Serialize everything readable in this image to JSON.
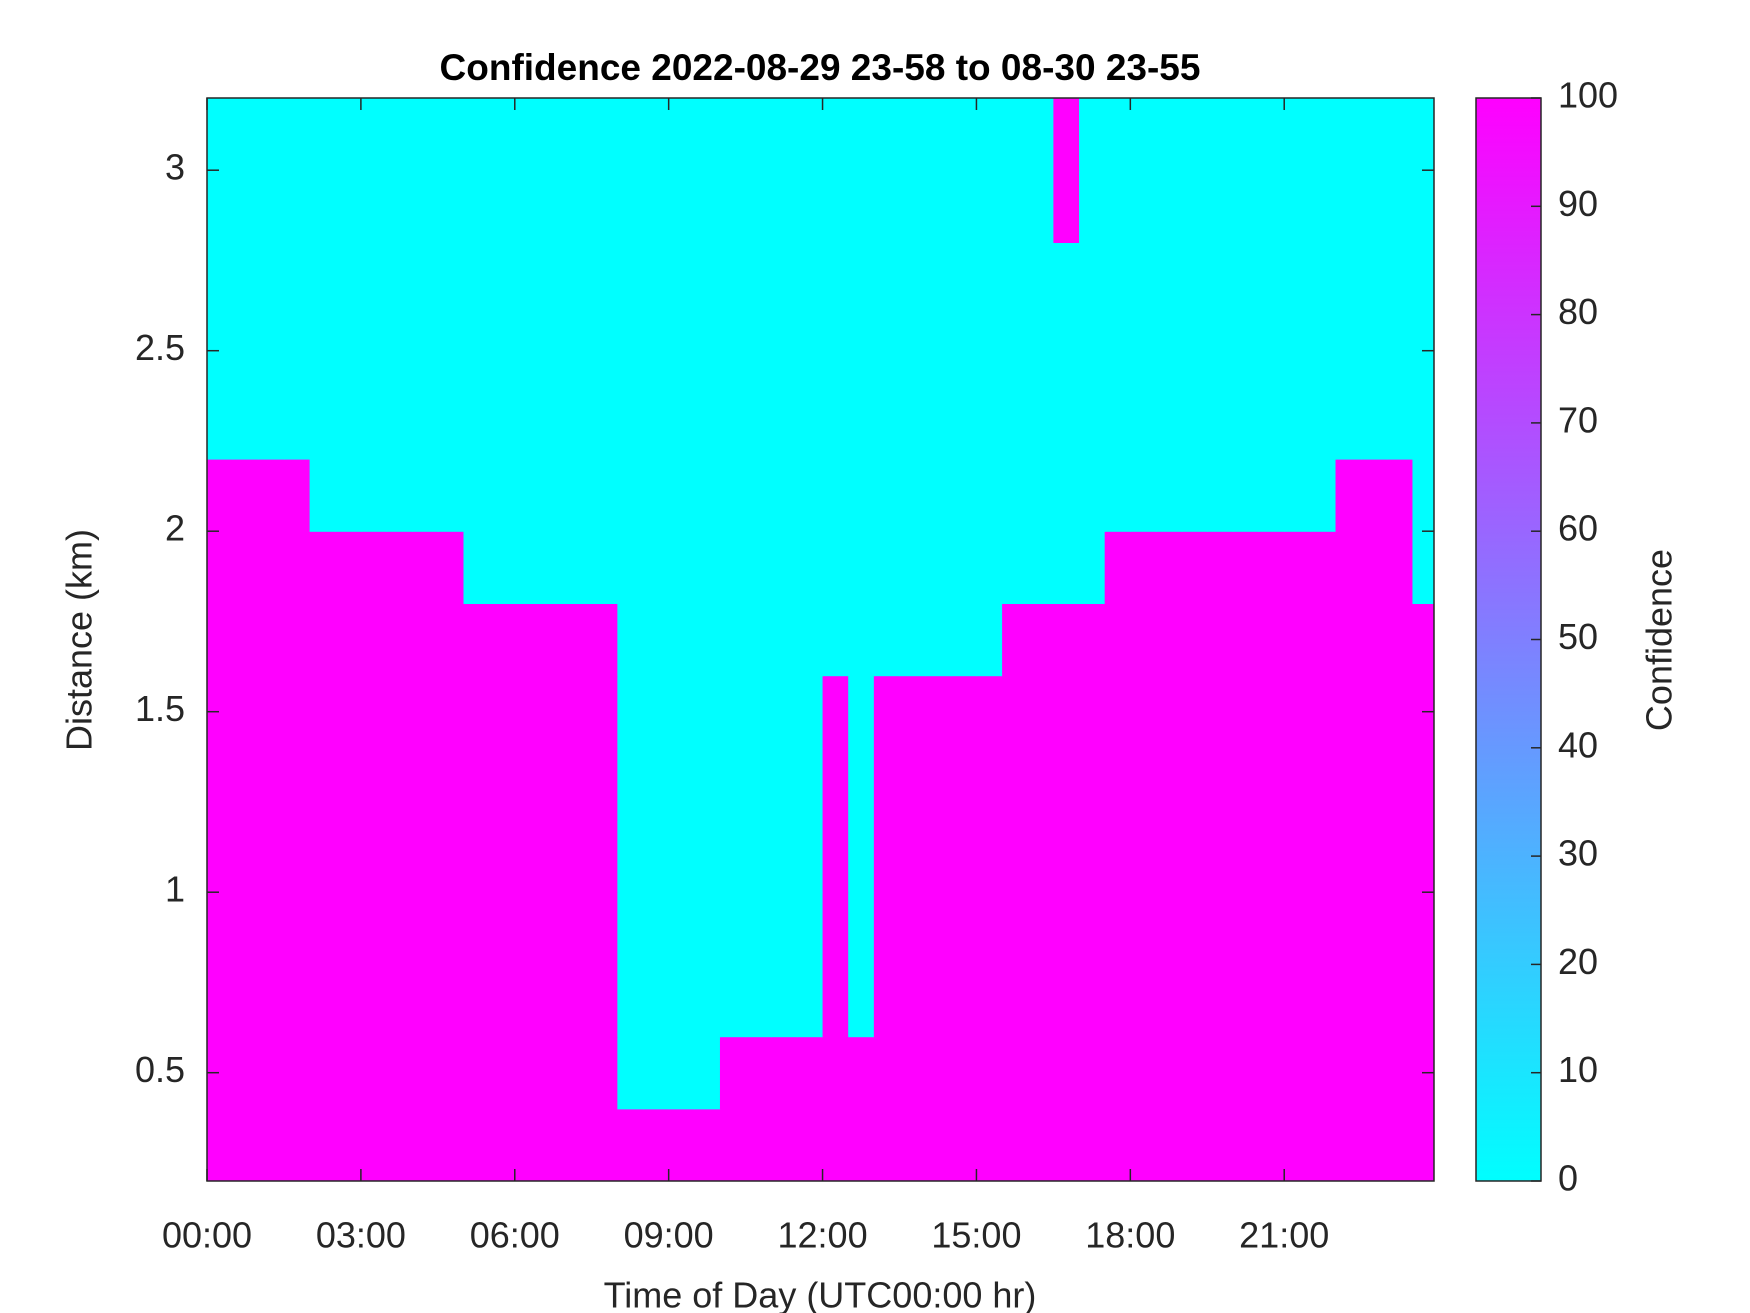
{
  "chart_data": {
    "type": "heatmap",
    "title": "Confidence 2022-08-29 23-58 to 08-30 23-55",
    "x_label": "Time of Day (UTC00:00 hr)",
    "y_label": "Distance (km)",
    "colorbar_label": "Confidence",
    "colors": [
      "#00ffff",
      "#ff00ff"
    ],
    "xlim": [
      0,
      23.92
    ],
    "xticks": [
      {
        "value": 0,
        "label": "00:00"
      },
      {
        "value": 3,
        "label": "03:00"
      },
      {
        "value": 6,
        "label": "06:00"
      },
      {
        "value": 9,
        "label": "09:00"
      },
      {
        "value": 12,
        "label": "12:00"
      },
      {
        "value": 15,
        "label": "15:00"
      },
      {
        "value": 18,
        "label": "18:00"
      },
      {
        "value": 21,
        "label": "21:00"
      }
    ],
    "ylim": [
      0.2,
      3.2
    ],
    "yticks": [
      0.5,
      1,
      1.5,
      2,
      2.5,
      3
    ],
    "clim": [
      0,
      100
    ],
    "cticks": [
      0,
      10,
      20,
      30,
      40,
      50,
      60,
      70,
      80,
      90,
      100
    ],
    "x_edges": [
      0,
      0.5,
      1,
      1.5,
      2,
      2.5,
      3,
      3.5,
      4,
      4.5,
      5,
      5.5,
      6,
      6.5,
      7,
      7.5,
      8,
      8.5,
      9,
      9.5,
      10,
      10.5,
      11,
      11.5,
      12,
      12.5,
      13,
      13.5,
      14,
      14.5,
      15,
      15.5,
      16,
      16.5,
      17,
      17.5,
      18,
      18.5,
      19,
      19.5,
      20,
      20.5,
      21,
      21.5,
      22,
      22.5,
      23,
      23.5,
      23.92
    ],
    "y_edges": [
      0.2,
      0.4,
      0.6,
      0.8,
      1.0,
      1.2,
      1.4,
      1.6,
      1.8,
      2.0,
      2.2,
      2.4,
      2.6,
      2.8,
      3.0,
      3.2
    ],
    "z": [
      [
        100,
        100,
        100,
        100,
        100,
        100,
        100,
        100,
        100,
        100,
        100,
        100,
        100,
        100,
        100,
        100,
        100,
        100,
        100,
        100,
        100,
        100,
        100,
        100,
        100,
        100,
        100,
        100,
        100,
        100,
        100,
        100,
        100,
        100,
        100,
        100,
        100,
        100,
        100,
        100,
        100,
        100,
        100,
        100,
        100,
        100,
        100,
        100
      ],
      [
        100,
        100,
        100,
        100,
        100,
        100,
        100,
        100,
        100,
        100,
        100,
        100,
        100,
        100,
        100,
        100,
        0,
        0,
        0,
        0,
        100,
        100,
        100,
        100,
        100,
        100,
        100,
        100,
        100,
        100,
        100,
        100,
        100,
        100,
        100,
        100,
        100,
        100,
        100,
        100,
        100,
        100,
        100,
        100,
        100,
        100,
        100,
        100
      ],
      [
        100,
        100,
        100,
        100,
        100,
        100,
        100,
        100,
        100,
        100,
        100,
        100,
        100,
        100,
        100,
        100,
        0,
        0,
        0,
        0,
        0,
        0,
        0,
        0,
        100,
        0,
        100,
        100,
        100,
        100,
        100,
        100,
        100,
        100,
        100,
        100,
        100,
        100,
        100,
        100,
        100,
        100,
        100,
        100,
        100,
        100,
        100,
        100
      ],
      [
        100,
        100,
        100,
        100,
        100,
        100,
        100,
        100,
        100,
        100,
        100,
        100,
        100,
        100,
        100,
        100,
        0,
        0,
        0,
        0,
        0,
        0,
        0,
        0,
        100,
        0,
        100,
        100,
        100,
        100,
        100,
        100,
        100,
        100,
        100,
        100,
        100,
        100,
        100,
        100,
        100,
        100,
        100,
        100,
        100,
        100,
        100,
        100
      ],
      [
        100,
        100,
        100,
        100,
        100,
        100,
        100,
        100,
        100,
        100,
        100,
        100,
        100,
        100,
        100,
        100,
        0,
        0,
        0,
        0,
        0,
        0,
        0,
        0,
        100,
        0,
        100,
        100,
        100,
        100,
        100,
        100,
        100,
        100,
        100,
        100,
        100,
        100,
        100,
        100,
        100,
        100,
        100,
        100,
        100,
        100,
        100,
        100
      ],
      [
        100,
        100,
        100,
        100,
        100,
        100,
        100,
        100,
        100,
        100,
        100,
        100,
        100,
        100,
        100,
        100,
        0,
        0,
        0,
        0,
        0,
        0,
        0,
        0,
        100,
        0,
        100,
        100,
        100,
        100,
        100,
        100,
        100,
        100,
        100,
        100,
        100,
        100,
        100,
        100,
        100,
        100,
        100,
        100,
        100,
        100,
        100,
        100
      ],
      [
        100,
        100,
        100,
        100,
        100,
        100,
        100,
        100,
        100,
        100,
        100,
        100,
        100,
        100,
        100,
        100,
        0,
        0,
        0,
        0,
        0,
        0,
        0,
        0,
        100,
        0,
        100,
        100,
        100,
        100,
        100,
        100,
        100,
        100,
        100,
        100,
        100,
        100,
        100,
        100,
        100,
        100,
        100,
        100,
        100,
        100,
        100,
        100
      ],
      [
        100,
        100,
        100,
        100,
        100,
        100,
        100,
        100,
        100,
        100,
        100,
        100,
        100,
        100,
        100,
        100,
        0,
        0,
        0,
        0,
        0,
        0,
        0,
        0,
        0,
        0,
        0,
        0,
        0,
        0,
        0,
        100,
        100,
        100,
        100,
        100,
        100,
        100,
        100,
        100,
        100,
        100,
        100,
        100,
        100,
        100,
        100,
        100
      ],
      [
        100,
        100,
        100,
        100,
        100,
        100,
        100,
        100,
        100,
        100,
        0,
        0,
        0,
        0,
        0,
        0,
        0,
        0,
        0,
        0,
        0,
        0,
        0,
        0,
        0,
        0,
        0,
        0,
        0,
        0,
        0,
        0,
        0,
        0,
        0,
        100,
        100,
        100,
        100,
        100,
        100,
        100,
        100,
        100,
        100,
        100,
        100,
        0
      ],
      [
        100,
        100,
        100,
        100,
        0,
        0,
        0,
        0,
        0,
        0,
        0,
        0,
        0,
        0,
        0,
        0,
        0,
        0,
        0,
        0,
        0,
        0,
        0,
        0,
        0,
        0,
        0,
        0,
        0,
        0,
        0,
        0,
        0,
        0,
        0,
        0,
        0,
        0,
        0,
        0,
        0,
        0,
        0,
        0,
        100,
        100,
        100,
        0
      ],
      [
        0,
        0,
        0,
        0,
        0,
        0,
        0,
        0,
        0,
        0,
        0,
        0,
        0,
        0,
        0,
        0,
        0,
        0,
        0,
        0,
        0,
        0,
        0,
        0,
        0,
        0,
        0,
        0,
        0,
        0,
        0,
        0,
        0,
        0,
        0,
        0,
        0,
        0,
        0,
        0,
        0,
        0,
        0,
        0,
        0,
        0,
        0,
        0
      ],
      [
        0,
        0,
        0,
        0,
        0,
        0,
        0,
        0,
        0,
        0,
        0,
        0,
        0,
        0,
        0,
        0,
        0,
        0,
        0,
        0,
        0,
        0,
        0,
        0,
        0,
        0,
        0,
        0,
        0,
        0,
        0,
        0,
        0,
        0,
        0,
        0,
        0,
        0,
        0,
        0,
        0,
        0,
        0,
        0,
        0,
        0,
        0,
        0
      ],
      [
        0,
        0,
        0,
        0,
        0,
        0,
        0,
        0,
        0,
        0,
        0,
        0,
        0,
        0,
        0,
        0,
        0,
        0,
        0,
        0,
        0,
        0,
        0,
        0,
        0,
        0,
        0,
        0,
        0,
        0,
        0,
        0,
        0,
        0,
        0,
        0,
        0,
        0,
        0,
        0,
        0,
        0,
        0,
        0,
        0,
        0,
        0,
        0
      ],
      [
        0,
        0,
        0,
        0,
        0,
        0,
        0,
        0,
        0,
        0,
        0,
        0,
        0,
        0,
        0,
        0,
        0,
        0,
        0,
        0,
        0,
        0,
        0,
        0,
        0,
        0,
        0,
        0,
        0,
        0,
        0,
        0,
        0,
        100,
        0,
        0,
        0,
        0,
        0,
        0,
        0,
        0,
        0,
        0,
        0,
        0,
        0,
        0
      ],
      [
        0,
        0,
        0,
        0,
        0,
        0,
        0,
        0,
        0,
        0,
        0,
        0,
        0,
        0,
        0,
        0,
        0,
        0,
        0,
        0,
        0,
        0,
        0,
        0,
        0,
        0,
        0,
        0,
        0,
        0,
        0,
        0,
        0,
        100,
        0,
        0,
        0,
        0,
        0,
        0,
        0,
        0,
        0,
        0,
        0,
        0,
        0,
        0
      ]
    ]
  }
}
